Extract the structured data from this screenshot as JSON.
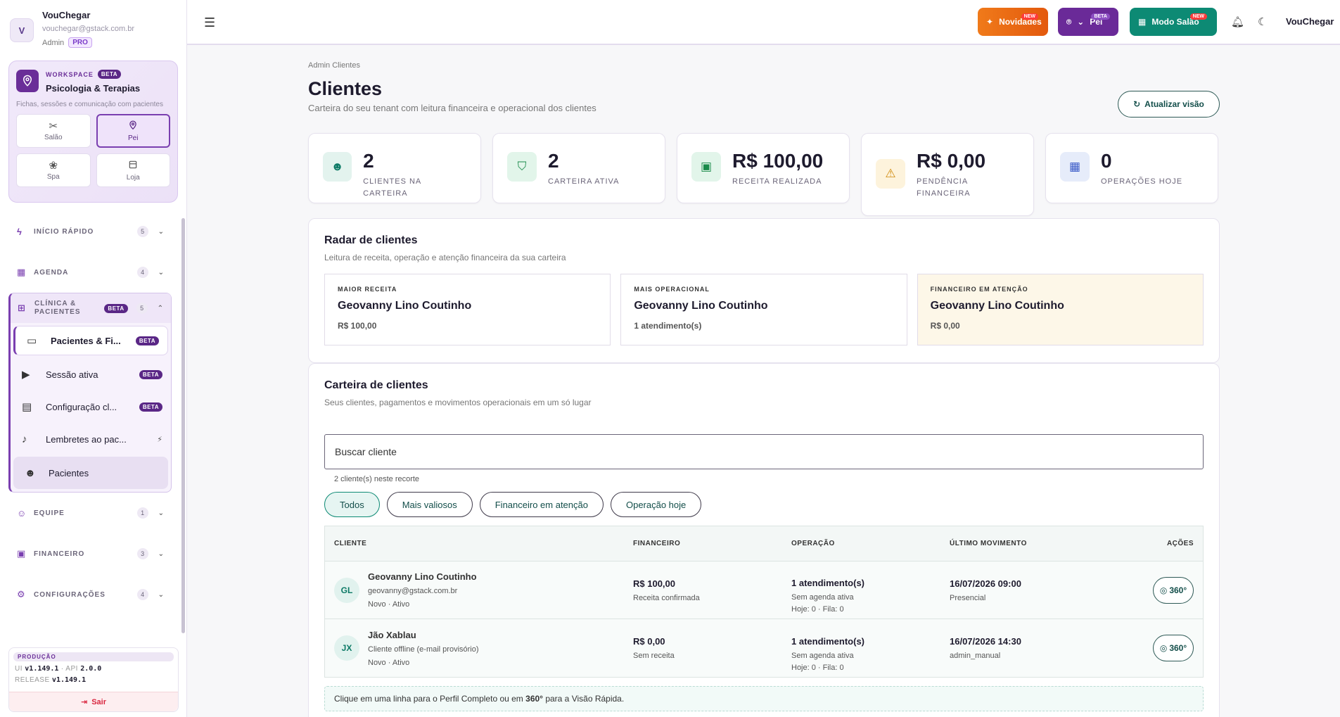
{
  "profile": {
    "initial": "V",
    "name": "VouChegar",
    "email": "vouchegar@gstack.com.br",
    "role": "Admin",
    "plan": "PRO"
  },
  "workspace": {
    "label": "WORKSPACE",
    "badge": "BETA",
    "title": "Psicologia & Terapias",
    "desc": "Fichas, sessões e comunicação com pacientes",
    "tiles": [
      {
        "label": "Salão",
        "icon": "scissors-icon"
      },
      {
        "label": "Pei",
        "icon": "location-pin-icon"
      },
      {
        "label": "Spa",
        "icon": "lotus-icon"
      },
      {
        "label": "Loja",
        "icon": "store-icon"
      }
    ]
  },
  "nav": {
    "groups": [
      {
        "label": "INÍCIO RÁPIDO",
        "count": "5"
      },
      {
        "label": "AGENDA",
        "count": "4"
      }
    ],
    "clinic": {
      "label_line1": "CLÍNICA &",
      "label_line2": "PACIENTES",
      "badge": "BETA",
      "count": "5",
      "items": [
        {
          "label": "Pacientes & Fi...",
          "badge": "BETA"
        },
        {
          "label": "Sessão ativa",
          "badge": "BETA"
        },
        {
          "label": "Configuração cl...",
          "badge": "BETA"
        },
        {
          "label": "Lembretes ao pac...",
          "badge": "⚡"
        },
        {
          "label": "Pacientes",
          "badge": ""
        }
      ]
    },
    "groups_after": [
      {
        "label": "EQUIPE",
        "count": "1"
      },
      {
        "label": "FINANCEIRO",
        "count": "3"
      },
      {
        "label": "CONFIGURAÇÕES",
        "count": "4"
      }
    ]
  },
  "env": {
    "label": "PRODUÇÃO",
    "ui_label": "UI",
    "ui_version": "v1.149.1",
    "api_label": "API",
    "api_version": "2.0.0",
    "release_label": "RELEASE",
    "release_version": "v1.149.1",
    "logout": "Sair"
  },
  "topbar": {
    "novidades": "Novidades",
    "new_badge": "NEW",
    "pei": "Pei",
    "beta_badge": "BETA",
    "modo_salao": "Modo Salão",
    "brand": "VouChegar"
  },
  "page": {
    "breadcrumb": "Admin Clientes",
    "title": "Clientes",
    "subtitle": "Carteira do seu tenant com leitura financeira e operacional dos clientes",
    "refresh": "Atualizar visão"
  },
  "kpis": [
    {
      "value": "2",
      "label": "CLIENTES NA CARTEIRA",
      "bg": "#e3f3ee",
      "fg": "#0d7a66"
    },
    {
      "value": "2",
      "label": "CARTEIRA ATIVA",
      "bg": "#e2f5ea",
      "fg": "#1a8a4a"
    },
    {
      "value": "R$ 100,00",
      "label": "RECEITA REALIZADA",
      "bg": "#e2f5ea",
      "fg": "#1a8a4a"
    },
    {
      "value": "R$ 0,00",
      "label_line1": "PENDÊNCIA",
      "label_line2": "FINANCEIRA",
      "bg": "#fdf3dc",
      "fg": "#d08a0c"
    },
    {
      "value": "0",
      "label": "OPERAÇÕES HOJE",
      "bg": "#e6ecfa",
      "fg": "#3b5bc8"
    }
  ],
  "radar": {
    "title": "Radar de clientes",
    "subtitle": "Leitura de receita, operação e atenção financeira da sua carteira",
    "cells": [
      {
        "label": "MAIOR RECEITA",
        "name": "Geovanny Lino Coutinho",
        "value": "R$ 100,00"
      },
      {
        "label": "MAIS OPERACIONAL",
        "name": "Geovanny Lino Coutinho",
        "value": "1 atendimento(s)"
      },
      {
        "label": "FINANCEIRO EM ATENÇÃO",
        "name": "Geovanny Lino Coutinho",
        "value": "R$ 0,00"
      }
    ]
  },
  "carteira": {
    "title": "Carteira de clientes",
    "subtitle": "Seus clientes, pagamentos e movimentos operacionais em um só lugar",
    "search_placeholder": "Buscar cliente",
    "count_note": "2 cliente(s) neste recorte",
    "filters": [
      "Todos",
      "Mais valiosos",
      "Financeiro em atenção",
      "Operação hoje"
    ],
    "columns": [
      "CLIENTE",
      "FINANCEIRO",
      "OPERAÇÃO",
      "ÚLTIMO MOVIMENTO",
      "AÇÕES"
    ],
    "rows": [
      {
        "initials": "GL",
        "name": "Geovanny Lino Coutinho",
        "email": "geovanny@gstack.com.br",
        "status": "Novo · Ativo",
        "fin_value": "R$ 100,00",
        "fin_status": "Receita confirmada",
        "op_main": "1 atendimento(s)",
        "op_sub": "Sem agenda ativa",
        "op_today": "Hoje: 0 · Fila: 0",
        "mov_date": "16/07/2026 09:00",
        "mov_type": "Presencial",
        "action": "360°"
      },
      {
        "initials": "JX",
        "name": "Jão Xablau",
        "email": "Cliente offline (e-mail provisório)",
        "status": "Novo · Ativo",
        "fin_value": "R$ 0,00",
        "fin_status": "Sem receita",
        "op_main": "1 atendimento(s)",
        "op_sub": "Sem agenda ativa",
        "op_today": "Hoje: 0 · Fila: 0",
        "mov_date": "16/07/2026 14:30",
        "mov_type": "admin_manual",
        "action": "360°"
      }
    ],
    "hint_pre": "Clique em uma linha para o Perfil Completo ou em ",
    "hint_bold": "360°",
    "hint_post": " para a Visão Rápida."
  }
}
